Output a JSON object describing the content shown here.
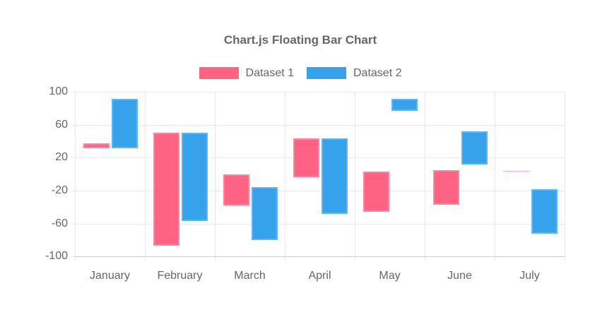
{
  "title": "Chart.js Floating Bar Chart",
  "legend": {
    "items": [
      {
        "label": "Dataset 1",
        "color": "#FF6384"
      },
      {
        "label": "Dataset 2",
        "color": "#36A2EB"
      }
    ]
  },
  "colors": {
    "dataset1": "#FF6384",
    "dataset2": "#36A2EB",
    "text": "#666666",
    "grid": "#e9e9e9",
    "axis_border": "#cccccc",
    "background": "#ffffff"
  },
  "chart_data": {
    "type": "bar",
    "variant": "floating",
    "title": "Chart.js Floating Bar Chart",
    "categories": [
      "January",
      "February",
      "March",
      "April",
      "May",
      "June",
      "July"
    ],
    "series": [
      {
        "name": "Dataset 1",
        "color": "#FF6384",
        "values": [
          [
            31,
            37
          ],
          [
            -87,
            50
          ],
          [
            -38,
            0
          ],
          [
            -4,
            43
          ],
          [
            -46,
            3
          ],
          [
            -37,
            5
          ],
          [
            3,
            4
          ]
        ]
      },
      {
        "name": "Dataset 2",
        "color": "#36A2EB",
        "values": [
          [
            31,
            91
          ],
          [
            -57,
            50
          ],
          [
            -80,
            -16
          ],
          [
            -48,
            43
          ],
          [
            77,
            91
          ],
          [
            12,
            52
          ],
          [
            -72,
            -18
          ]
        ]
      }
    ],
    "ylim": [
      -100,
      100
    ],
    "yticks": [
      100,
      60,
      20,
      -20,
      -60,
      -100
    ],
    "xlabel": "",
    "ylabel": "",
    "grid": true,
    "legend_position": "top"
  }
}
